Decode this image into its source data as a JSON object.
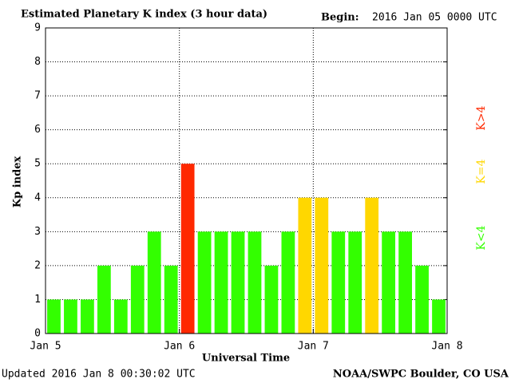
{
  "chart_data": {
    "type": "bar",
    "title": "Estimated Planetary K index (3 hour data)",
    "begin_label": "Begin:",
    "begin_value": "2016 Jan 05 0000 UTC",
    "xlabel": "Universal Time",
    "ylabel": "Kp index",
    "updated": "Updated 2016 Jan  8 00:30:02 UTC",
    "source": "NOAA/SWPC Boulder, CO USA",
    "x": [
      1.5,
      4.5,
      7.5,
      10.5,
      13.5,
      16.5,
      19.5,
      22.5,
      25.5,
      28.5,
      31.5,
      34.5,
      37.5,
      40.5,
      43.5,
      46.5,
      49.5,
      52.5,
      55.5,
      58.5,
      61.5,
      64.5,
      67.5,
      70.5
    ],
    "values": [
      1,
      1,
      1,
      2,
      1,
      2,
      3,
      2,
      5,
      3,
      3,
      3,
      3,
      2,
      3,
      4,
      4,
      3,
      3,
      4,
      3,
      3,
      2,
      1
    ],
    "colors": [
      "#33ff00",
      "#33ff00",
      "#33ff00",
      "#33ff00",
      "#33ff00",
      "#33ff00",
      "#33ff00",
      "#33ff00",
      "#ff2800",
      "#33ff00",
      "#33ff00",
      "#33ff00",
      "#33ff00",
      "#33ff00",
      "#33ff00",
      "#ffd700",
      "#ffd700",
      "#33ff00",
      "#33ff00",
      "#ffd700",
      "#33ff00",
      "#33ff00",
      "#33ff00",
      "#33ff00"
    ],
    "xlim": [
      0,
      72
    ],
    "xticks": [
      {
        "value": 0,
        "label": "Jan 5"
      },
      {
        "value": 24,
        "label": "Jan 6"
      },
      {
        "value": 48,
        "label": "Jan 7"
      },
      {
        "value": 72,
        "label": "Jan 8"
      }
    ],
    "ylim": [
      0,
      9
    ],
    "yticks": [
      0,
      1,
      2,
      3,
      4,
      5,
      6,
      7,
      8,
      9
    ],
    "grid": true,
    "legend": [
      {
        "label": "K<4",
        "color": "#33ff00"
      },
      {
        "label": "K=4",
        "color": "#ffd700"
      },
      {
        "label": "K>4",
        "color": "#ff2800"
      }
    ]
  }
}
